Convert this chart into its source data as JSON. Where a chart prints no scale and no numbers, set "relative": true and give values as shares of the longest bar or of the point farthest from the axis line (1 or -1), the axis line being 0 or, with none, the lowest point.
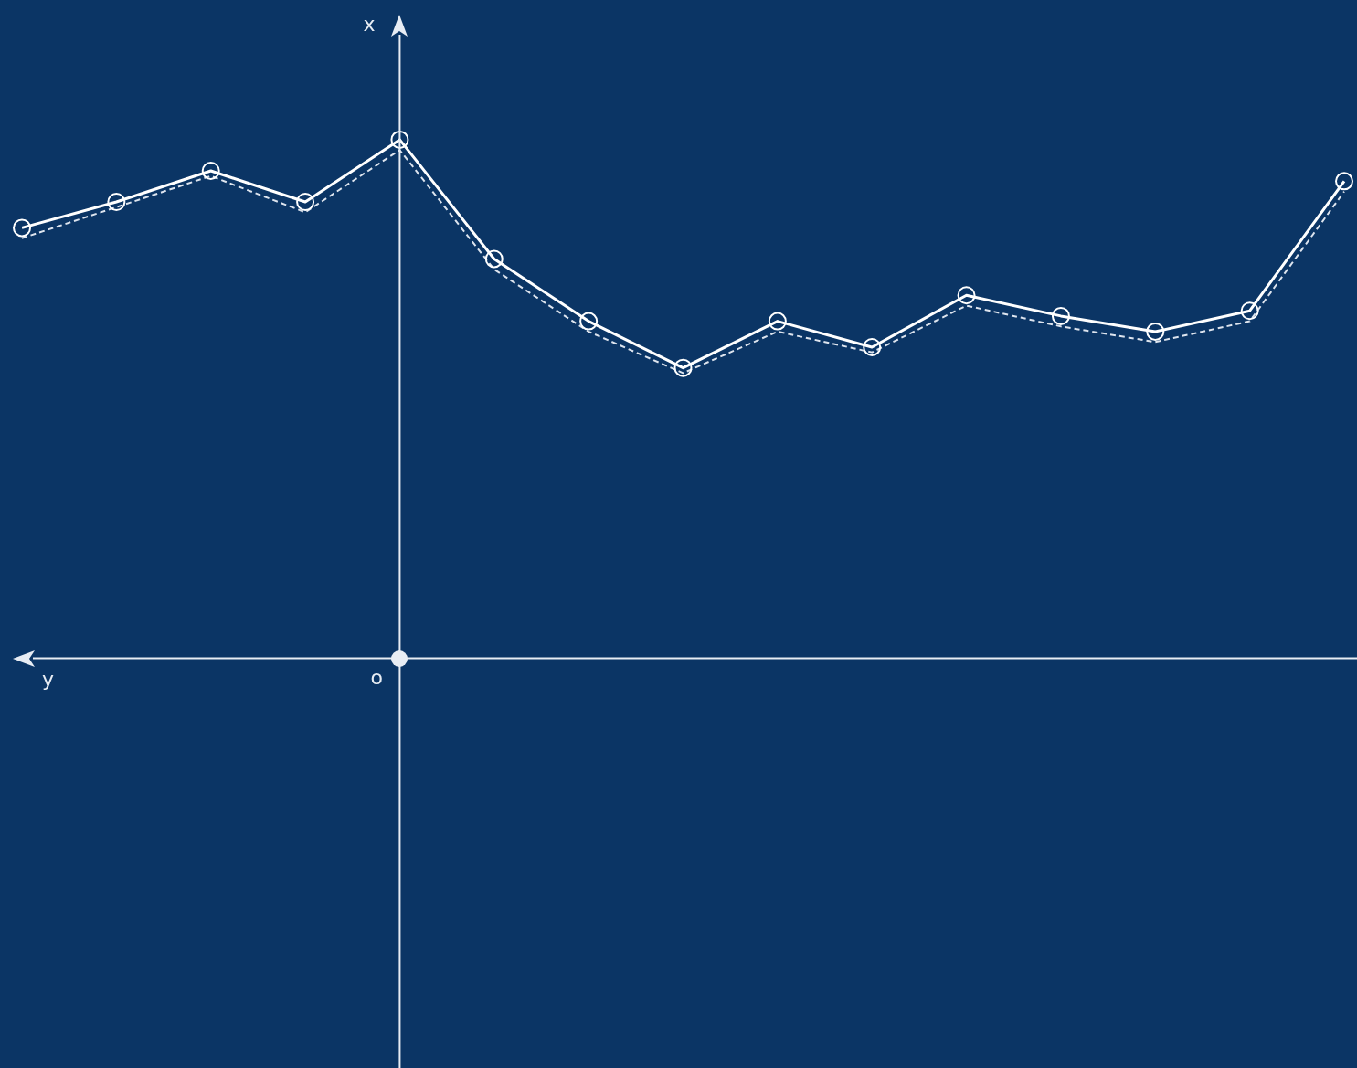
{
  "chart_data": {
    "type": "line",
    "relative": true,
    "annotations": [
      "x",
      "y",
      "o"
    ],
    "categories": [
      null,
      null,
      null,
      null,
      null,
      null,
      null,
      null,
      null,
      null,
      null,
      null,
      null,
      null,
      null
    ],
    "series": [
      {
        "color": "#ffffff",
        "line_style": "solid",
        "marker": "circle",
        "values": [
          0.83,
          0.88,
          0.94,
          0.88,
          1,
          0.77,
          0.65,
          0.56,
          0.65,
          0.6,
          0.7,
          0.66,
          0.63,
          0.67,
          0.92
        ]
      },
      {
        "color": "#dde4ee",
        "line_style": "dashed",
        "marker": "none",
        "values": [
          0.81,
          0.87,
          0.93,
          0.86,
          0.98,
          0.75,
          0.63,
          0.55,
          0.63,
          0.59,
          0.68,
          0.64,
          0.61,
          0.65,
          0.9
        ]
      }
    ],
    "grid": false,
    "legend": false
  }
}
